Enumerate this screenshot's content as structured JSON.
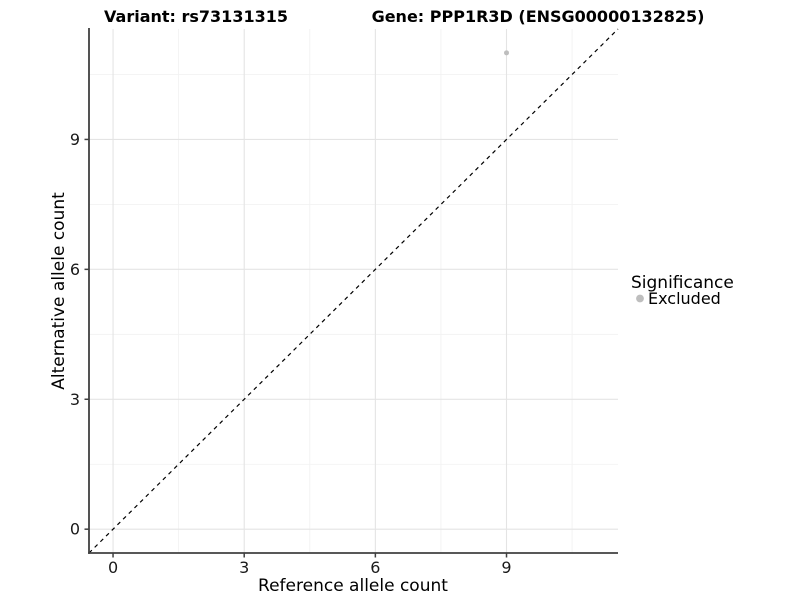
{
  "header": {
    "variant_title": "Variant: rs73131315",
    "gene_title": "Gene: PPP1R3D (ENSG00000132825)"
  },
  "legend": {
    "title": "Significance",
    "position": "right",
    "items": [
      {
        "label": "Excluded",
        "color": "#bebebe",
        "marker": "dot"
      }
    ]
  },
  "chart_data": {
    "type": "scatter",
    "title": "Variant: rs73131315 / Gene: PPP1R3D (ENSG00000132825)",
    "xlabel": "Reference allele count",
    "ylabel": "Alternative allele count",
    "xlim": [
      -0.55,
      11.55
    ],
    "ylim": [
      -0.55,
      11.55
    ],
    "x_ticks": [
      0,
      3,
      6,
      9
    ],
    "y_ticks": [
      0,
      3,
      6,
      9
    ],
    "x_minor_ticks": [
      1.5,
      4.5,
      7.5,
      10.5
    ],
    "y_minor_ticks": [
      1.5,
      4.5,
      7.5,
      10.5
    ],
    "grid": true,
    "legend_position": "right",
    "legend_title": "Significance",
    "series": [
      {
        "name": "Excluded",
        "color": "#bebebe",
        "points": [
          [
            9,
            11
          ]
        ]
      }
    ],
    "reference_line": {
      "type": "identity y = x",
      "style": "dashed",
      "color": "#000000",
      "from": [
        -0.55,
        -0.55
      ],
      "to": [
        11.55,
        11.55
      ]
    }
  },
  "colors": {
    "background": "#ffffff",
    "axis": "#404040",
    "grid_major": "#e4e4e4",
    "grid_minor": "#f1f1f1",
    "tick_text": "#1a1a1a",
    "point": "#bebebe"
  }
}
